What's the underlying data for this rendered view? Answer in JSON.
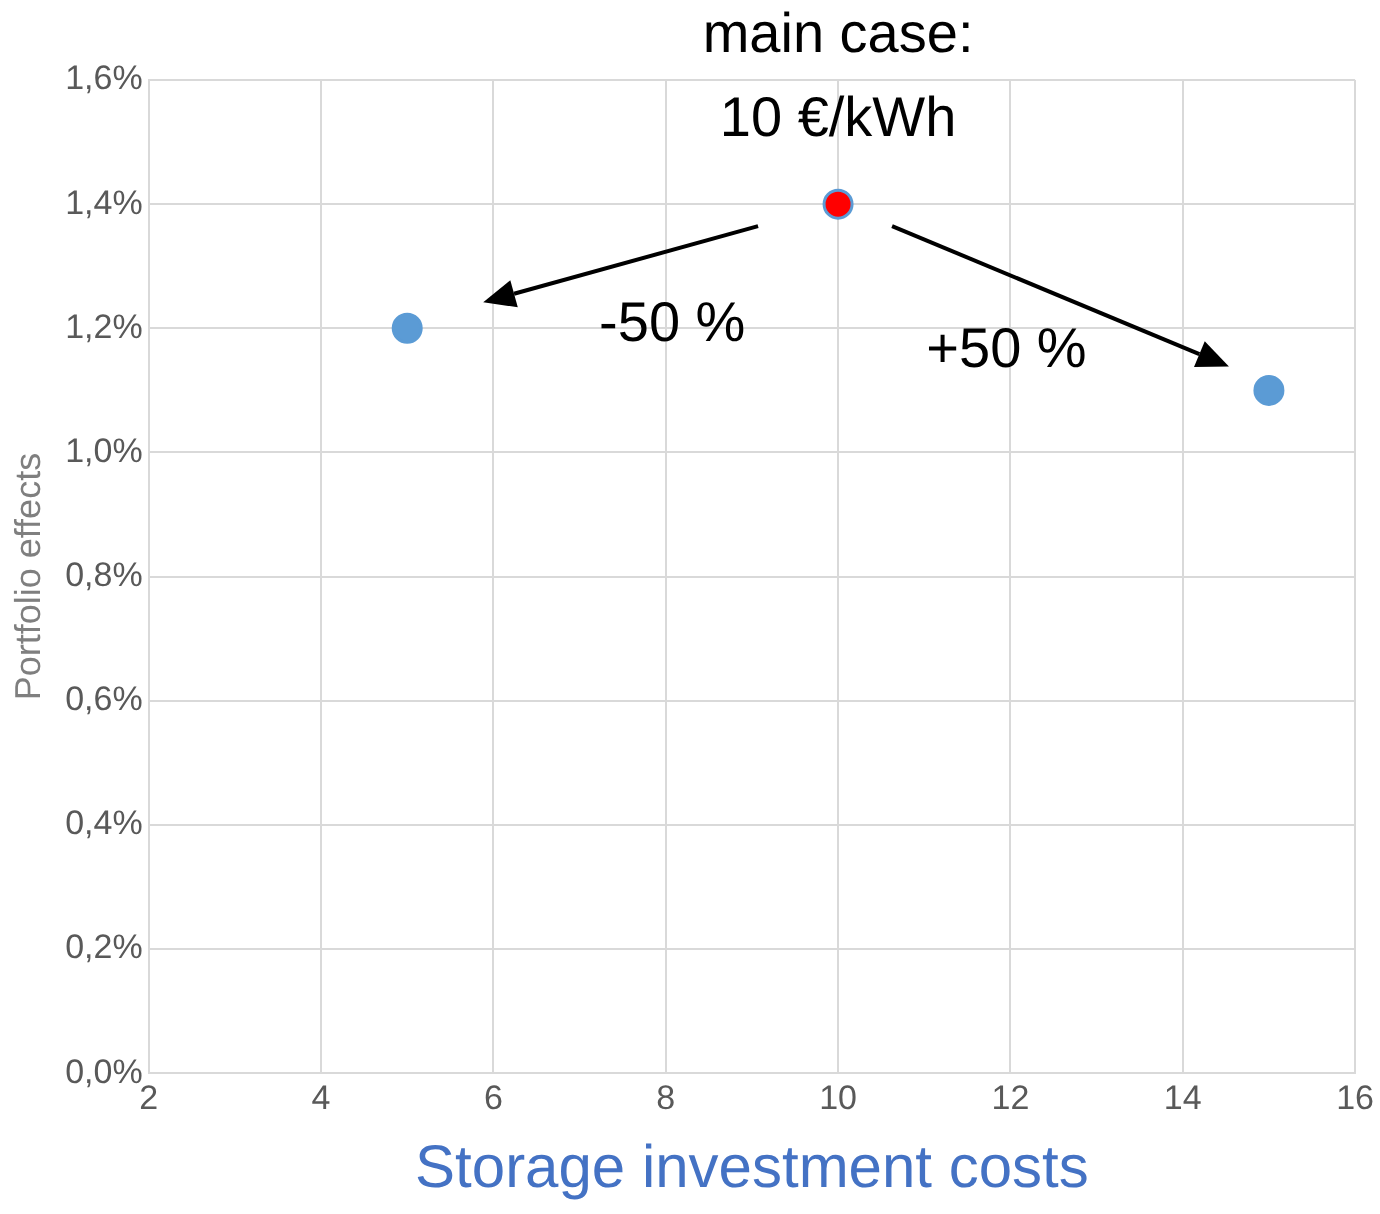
{
  "chart_data": {
    "type": "scatter",
    "xlabel": "Storage investment costs",
    "ylabel": "Portfolio effects",
    "x": [
      5,
      10,
      15
    ],
    "values": [
      1.2,
      1.4,
      1.1
    ],
    "color": "#5b9bd5",
    "colors": [
      "#5b9bd5",
      "#ff0000",
      "#5b9bd5"
    ],
    "xlim": [
      2,
      16
    ],
    "xticks": [
      2,
      4,
      6,
      8,
      10,
      12,
      14,
      16
    ],
    "ylim": [
      0,
      1.6
    ],
    "yticks": [
      {
        "value": 0,
        "label": "0,0%"
      },
      {
        "value": 0.2,
        "label": "0,2%"
      },
      {
        "value": 0.4,
        "label": "0,4%"
      },
      {
        "value": 0.6,
        "label": "0,6%"
      },
      {
        "value": 0.8,
        "label": "0,8%"
      },
      {
        "value": 1.0,
        "label": "1,0%"
      },
      {
        "value": 1.2,
        "label": "1,2%"
      },
      {
        "value": 1.4,
        "label": "1,4%"
      },
      {
        "value": 1.6,
        "label": "1,6%"
      }
    ],
    "grid": true,
    "marker": "circle",
    "annotations": [
      {
        "text": "main case:\n10 €/kWh",
        "x": 10,
        "y": 1.4
      },
      "-50 %",
      "+50 %"
    ]
  }
}
